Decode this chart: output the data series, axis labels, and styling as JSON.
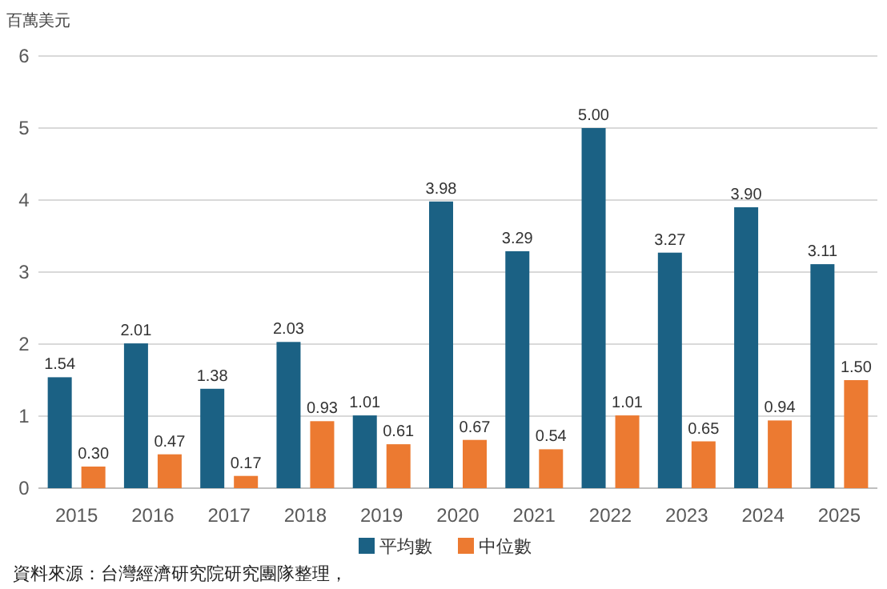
{
  "chart_data": {
    "type": "bar",
    "ylabel": "百萬美元",
    "categories": [
      "2015",
      "2016",
      "2017",
      "2018",
      "2019",
      "2020",
      "2021",
      "2022",
      "2023",
      "2024",
      "2025"
    ],
    "series": [
      {
        "name": "平均數",
        "color": "#1b6184",
        "values": [
          1.54,
          2.01,
          1.38,
          2.03,
          1.01,
          3.98,
          3.29,
          5.0,
          3.27,
          3.9,
          3.11
        ],
        "value_labels": [
          "1.54",
          "2.01",
          "1.38",
          "2.03",
          "1.01",
          "3.98",
          "3.29",
          "5.00",
          "3.27",
          "3.90",
          "3.11"
        ]
      },
      {
        "name": "中位數",
        "color": "#ec7a31",
        "values": [
          0.3,
          0.47,
          0.17,
          0.93,
          0.61,
          0.67,
          0.54,
          1.01,
          0.65,
          0.94,
          1.5
        ],
        "value_labels": [
          "0.30",
          "0.47",
          "0.17",
          "0.93",
          "0.61",
          "0.67",
          "0.54",
          "1.01",
          "0.65",
          "0.94",
          "1.50"
        ]
      }
    ],
    "ylim": [
      0,
      6
    ],
    "yticks": [
      0,
      1,
      2,
      3,
      4,
      5,
      6
    ],
    "grid": "y",
    "legend": "bottom",
    "annotations": [
      "資料來源：台灣經濟研究院研究團隊整理，"
    ]
  }
}
